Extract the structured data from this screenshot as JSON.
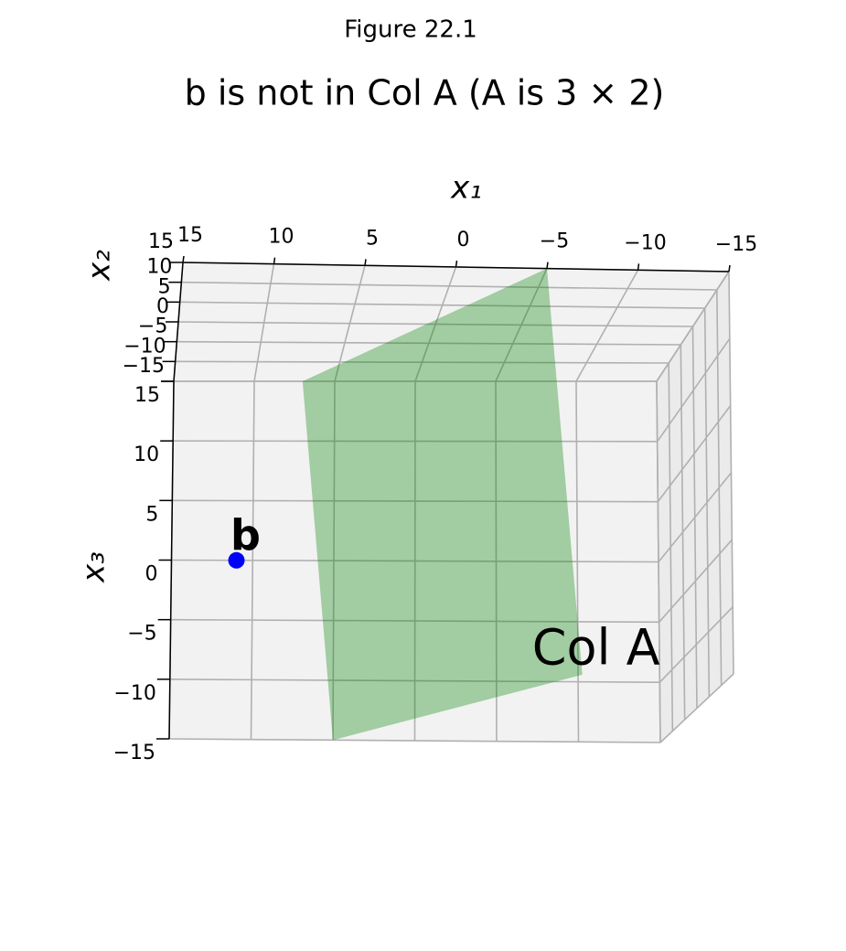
{
  "chart_data": {
    "type": "scatter3d",
    "figure_label": "Figure 22.1",
    "title": "b is not in Col A (A is 3 × 2)",
    "xlabel": "x₁",
    "ylabel": "x₂",
    "zlabel": "x₃",
    "xlim": [
      15,
      -15
    ],
    "ylim": [
      -15,
      15
    ],
    "zlim": [
      -15,
      15
    ],
    "xticks": [
      15,
      10,
      5,
      0,
      {
        "value": -5,
        "label": "−5"
      },
      {
        "value": -10,
        "label": "−10"
      },
      {
        "value": -15,
        "label": "−15"
      }
    ],
    "yticks": [
      15,
      10,
      5,
      0,
      {
        "value": -5,
        "label": "−5"
      },
      {
        "value": -10,
        "label": "−10"
      },
      {
        "value": -15,
        "label": "−15"
      }
    ],
    "zticks": [
      15,
      10,
      5,
      0,
      {
        "value": -5,
        "label": "−5"
      },
      {
        "value": -10,
        "label": "−10"
      },
      {
        "value": -15,
        "label": "−15"
      }
    ],
    "grid": true,
    "points": [
      {
        "name": "b",
        "color": "blue",
        "x": 11,
        "y": -15,
        "z": 0
      }
    ],
    "planes": [
      {
        "name": "Col A",
        "color": "green",
        "opacity": 0.33,
        "vertices": [
          [
            7,
            -15,
            15
          ],
          [
            -5,
            15,
            15
          ],
          [
            -7,
            15,
            -15
          ],
          [
            5,
            -15,
            -15
          ]
        ]
      }
    ]
  }
}
